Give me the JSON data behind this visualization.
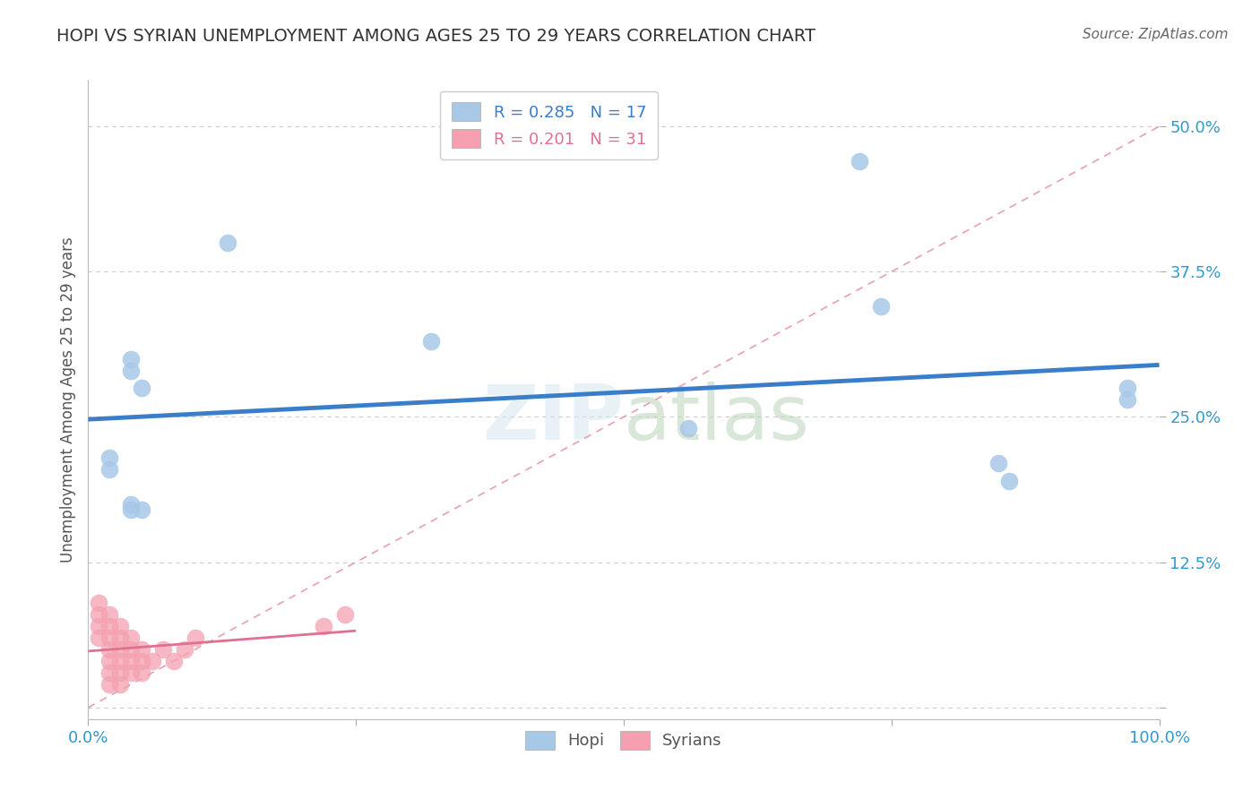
{
  "title": "HOPI VS SYRIAN UNEMPLOYMENT AMONG AGES 25 TO 29 YEARS CORRELATION CHART",
  "source": "Source: ZipAtlas.com",
  "ylabel_label": "Unemployment Among Ages 25 to 29 years",
  "R_hopi": 0.285,
  "N_hopi": 17,
  "R_syrian": 0.201,
  "N_syrian": 31,
  "hopi_color": "#a8c8e8",
  "syrian_color": "#f4a0b0",
  "hopi_line_color": "#3a7dc9",
  "syrian_line_color": "#e07090",
  "diagonal_color": "#e8a0b0",
  "background_color": "#ffffff",
  "hopi_x": [
    0.02,
    0.02,
    0.04,
    0.04,
    0.04,
    0.04,
    0.05,
    0.05,
    0.13,
    0.32,
    0.56,
    0.72,
    0.74,
    0.85,
    0.86,
    0.97,
    0.97
  ],
  "hopi_y": [
    0.205,
    0.215,
    0.17,
    0.175,
    0.29,
    0.3,
    0.17,
    0.275,
    0.4,
    0.315,
    0.24,
    0.47,
    0.345,
    0.21,
    0.195,
    0.265,
    0.275
  ],
  "syrian_x": [
    0.01,
    0.01,
    0.01,
    0.01,
    0.02,
    0.02,
    0.02,
    0.02,
    0.02,
    0.02,
    0.02,
    0.03,
    0.03,
    0.03,
    0.03,
    0.03,
    0.03,
    0.04,
    0.04,
    0.04,
    0.04,
    0.05,
    0.05,
    0.05,
    0.06,
    0.07,
    0.08,
    0.09,
    0.1,
    0.22,
    0.24
  ],
  "syrian_y": [
    0.06,
    0.07,
    0.08,
    0.09,
    0.02,
    0.03,
    0.04,
    0.05,
    0.06,
    0.07,
    0.08,
    0.02,
    0.03,
    0.04,
    0.05,
    0.06,
    0.07,
    0.03,
    0.04,
    0.05,
    0.06,
    0.03,
    0.04,
    0.05,
    0.04,
    0.05,
    0.04,
    0.05,
    0.06,
    0.07,
    0.08
  ],
  "xlim": [
    0.0,
    1.0
  ],
  "ylim": [
    -0.01,
    0.54
  ],
  "yticks": [
    0.0,
    0.125,
    0.25,
    0.375,
    0.5
  ],
  "ytick_labels": [
    "",
    "12.5%",
    "25.0%",
    "37.5%",
    "50.0%"
  ],
  "xticks": [
    0.0,
    0.25,
    0.5,
    0.75,
    1.0
  ],
  "xtick_labels": [
    "0.0%",
    "",
    "",
    "",
    "100.0%"
  ]
}
